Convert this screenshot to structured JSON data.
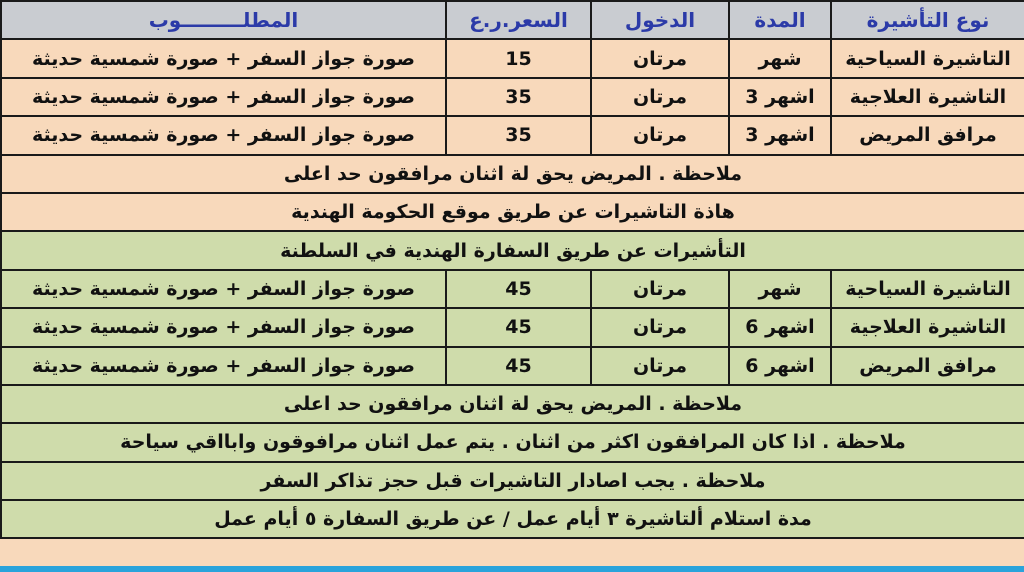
{
  "header": {
    "type": "نوع التأشيرة",
    "duration": "المدة",
    "entry": "الدخول",
    "price": "السعر.ر.ع",
    "required": "المطلـــــــــوب"
  },
  "section1": {
    "rows": [
      {
        "type": "التاشيرة السياحية",
        "duration": "شهر",
        "entry": "مرتان",
        "price": "15",
        "required": "صورة جواز السفر + صورة شمسية حديثة"
      },
      {
        "type": "التاشيرة العلاجية",
        "duration": "اشهر 3",
        "entry": "مرتان",
        "price": "35",
        "required": "صورة جواز السفر + صورة شمسية حديثة"
      },
      {
        "type": "مرافق المريض",
        "duration": "اشهر 3",
        "entry": "مرتان",
        "price": "35",
        "required": "صورة جواز السفر + صورة شمسية حديثة"
      }
    ],
    "note": "ملاحظة . المريض يحق لة اثنان مرافقون حد اعلى",
    "footer": "هاذة التاشيرات عن طريق موقع الحكومة الهندية"
  },
  "section2": {
    "title": "التأشيرات عن طريق السفارة الهندية في السلطنة",
    "rows": [
      {
        "type": "التاشيرة السياحية",
        "duration": "شهر",
        "entry": "مرتان",
        "price": "45",
        "required": "صورة جواز السفر + صورة شمسية حديثة"
      },
      {
        "type": "التاشيرة العلاجية",
        "duration": "اشهر 6",
        "entry": "مرتان",
        "price": "45",
        "required": "صورة جواز السفر + صورة شمسية حديثة"
      },
      {
        "type": "مرافق المريض",
        "duration": "اشهر 6",
        "entry": "مرتان",
        "price": "45",
        "required": "صورة جواز السفر + صورة شمسية حديثة"
      }
    ],
    "notes": [
      "ملاحظة . المريض يحق لة اثنان مرافقون حد اعلى",
      "ملاحظة . اذا كان المرافقون اكثر من اثنان . يتم عمل اثنان مرافوقون وابااقي سياحة",
      "ملاحظة . يجب اصادار التاشيرات قبل حجز تذاكر السفر",
      "مدة استلام ألتاشيرة ٣ أيام عمل / عن طريق السفارة ٥ أيام عمل"
    ]
  },
  "colors": {
    "header_bg": "#c9ccd1",
    "header_text": "#2b3aa8",
    "peach": "#f8d9bb",
    "green": "#cfdcab",
    "strip": "#2aa3db"
  }
}
